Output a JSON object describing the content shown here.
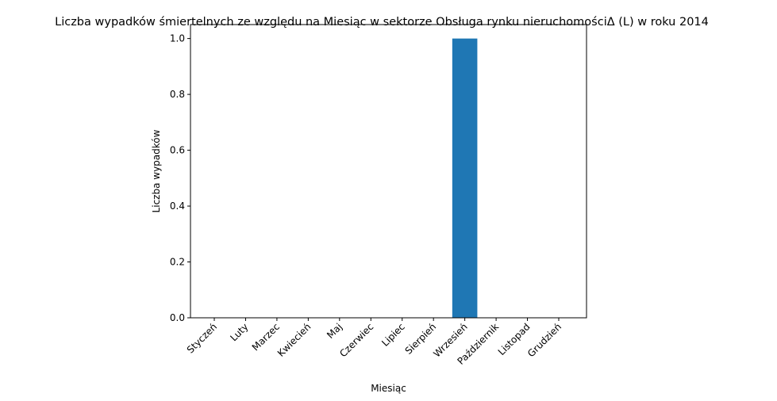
{
  "chart_data": {
    "type": "bar",
    "title": "Liczba wypadków śmiertelnych ze względu na Miesiąc w sektorze  Obsługa rynku nieruchomościΔ  (L) w roku 2014",
    "xlabel": "Miesiąc",
    "ylabel": "Liczba wypadków",
    "categories": [
      "Styczeń",
      "Luty",
      "Marzec",
      "Kwiecień",
      "Maj",
      "Czerwiec",
      "Lipiec",
      "Sierpień",
      "Wrzesień",
      "Październik",
      "Listopad",
      "Grudzień"
    ],
    "values": [
      0,
      0,
      0,
      0,
      0,
      0,
      0,
      0,
      1,
      0,
      0,
      0
    ],
    "ylim": [
      0,
      1.05
    ],
    "yticks": [
      "0.0",
      "0.2",
      "0.4",
      "0.6",
      "0.8",
      "1.0"
    ],
    "grid": false,
    "bar_color": "#1f77b4"
  }
}
